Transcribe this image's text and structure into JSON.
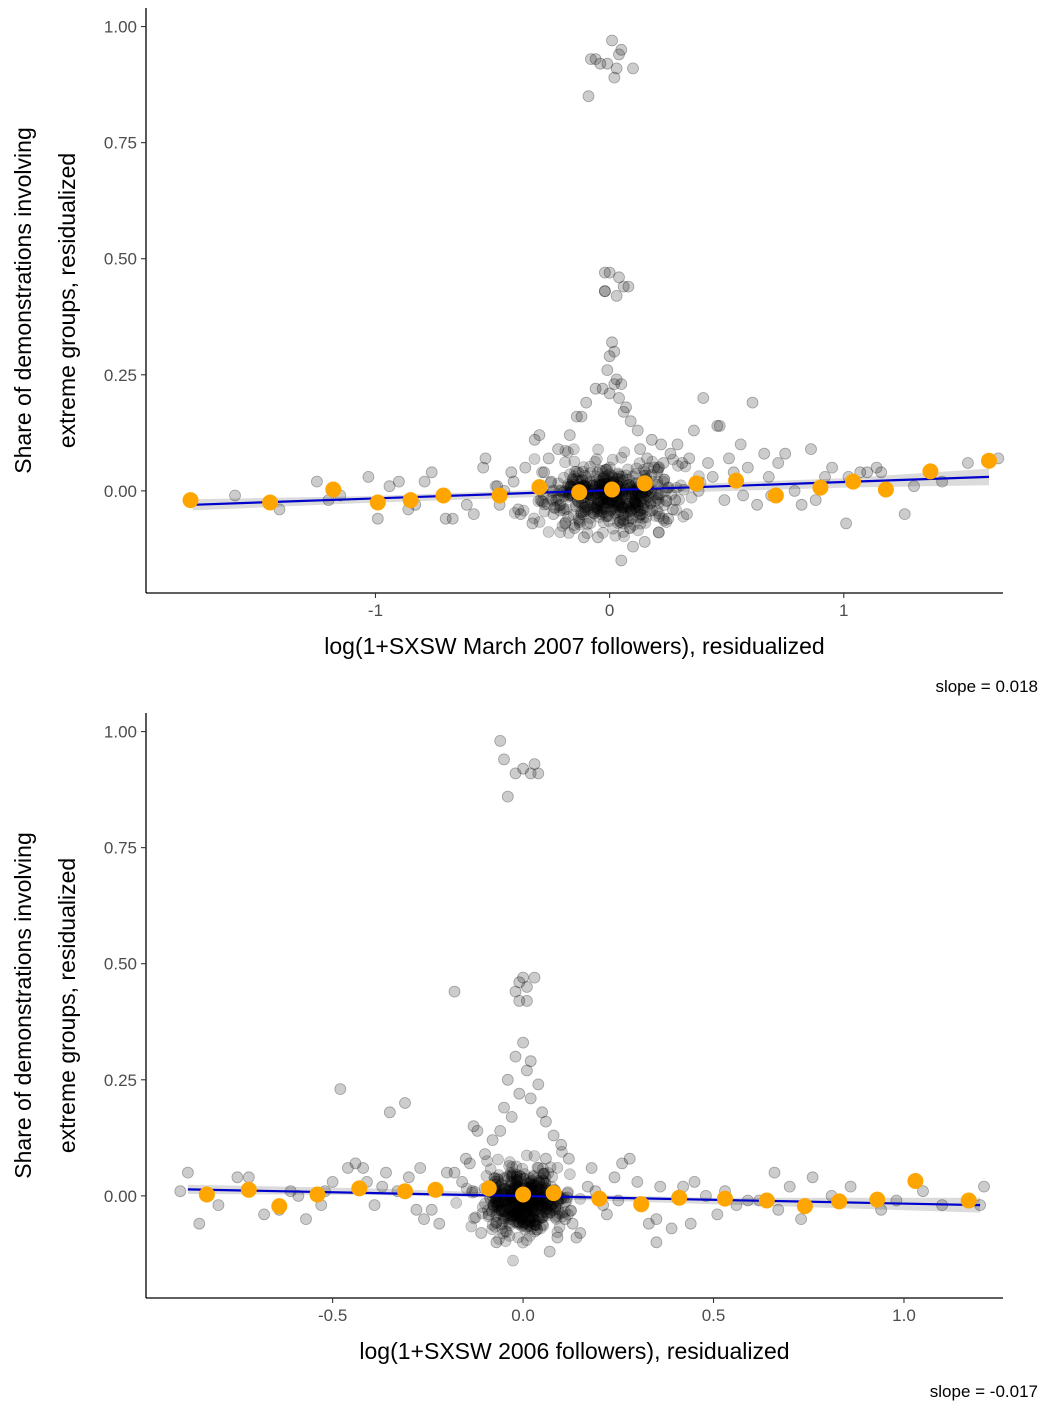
{
  "colors": {
    "points": "#000000",
    "binned": "#FFA500",
    "fit_line": "#0000CC",
    "ci_band": "#BEBEBE",
    "axis": "#000000",
    "tick_text": "#4D4D4D"
  },
  "chart_data": [
    {
      "type": "scatter",
      "title": "",
      "xlabel": "log(1+SXSW March 2007 followers), residualized",
      "ylabel_lines": [
        "Share of demonstrations involving",
        "extreme groups, residualized"
      ],
      "annotation": "slope = 0.018",
      "xlim": [
        -1.98,
        1.68
      ],
      "ylim": [
        -0.22,
        1.04
      ],
      "x_ticks": [
        -1,
        0,
        1
      ],
      "x_tick_labels": [
        "-1",
        "0",
        "1"
      ],
      "y_ticks": [
        0,
        0.25,
        0.5,
        0.75,
        1
      ],
      "y_tick_labels": [
        "0.00",
        "0.25",
        "0.50",
        "0.75",
        "1.00"
      ],
      "grid": false,
      "fit_line": {
        "x": [
          -1.78,
          1.62
        ],
        "y": [
          -0.03,
          0.03
        ]
      },
      "ci_band": {
        "x": [
          -1.78,
          -1.0,
          0.0,
          1.0,
          1.62
        ],
        "lower": [
          -0.042,
          -0.025,
          -0.008,
          0.007,
          0.012
        ],
        "upper": [
          -0.018,
          -0.011,
          0.008,
          0.027,
          0.048
        ]
      },
      "binned_points": {
        "x": [
          -1.79,
          -1.45,
          -1.18,
          -0.99,
          -0.85,
          -0.71,
          -0.47,
          -0.3,
          -0.13,
          0.01,
          0.15,
          0.37,
          0.54,
          0.71,
          0.9,
          1.04,
          1.18,
          1.37,
          1.62
        ],
        "y": [
          -0.02,
          -0.025,
          0.003,
          -0.025,
          -0.02,
          -0.01,
          -0.01,
          0.008,
          -0.003,
          0.003,
          0.016,
          0.016,
          0.022,
          -0.01,
          0.007,
          0.02,
          0.003,
          0.042,
          0.065
        ]
      },
      "scatter_points": {
        "x": [
          -0.06,
          -0.01,
          -0.09,
          0.03,
          0.05,
          0.04,
          -0.04,
          0.1,
          -0.08,
          0.01,
          0.02,
          0.0,
          0.04,
          -0.02,
          0.03,
          0.08,
          -0.02,
          0.01,
          0.02,
          0.0,
          -0.01,
          0.03,
          0.02,
          -0.03,
          0.0,
          0.05,
          -0.06,
          0.04,
          -0.1,
          0.06,
          -0.12,
          0.09,
          0.12,
          -0.17,
          0.22,
          -0.22,
          0.26,
          -0.26,
          0.31,
          0.34,
          0.4,
          0.47,
          0.56,
          0.61,
          0.66,
          0.72,
          0.82,
          0.86,
          0.95,
          1.07,
          1.14,
          1.26,
          1.42,
          1.53,
          1.66,
          -0.3,
          -0.32,
          -0.39,
          -0.42,
          -0.48,
          -0.53,
          -0.7,
          -0.76,
          -0.83,
          -0.9,
          -0.99,
          -1.15,
          -1.25,
          -1.6,
          -0.45,
          -0.38,
          0.46,
          0.59,
          0.75,
          0.92,
          1.01,
          1.1,
          -0.05,
          0.05,
          0.1,
          -0.11,
          -0.15,
          0.15,
          0.18,
          -0.19,
          0.21,
          -0.24,
          0.25,
          0.28,
          -0.28,
          0.29,
          -0.33,
          0.36,
          0.38,
          -0.36,
          0.44,
          0.51,
          0.63,
          0.69,
          0.79,
          0.88,
          1.02,
          1.16,
          1.3,
          -0.54,
          -0.61,
          -0.67,
          -0.79,
          -0.86,
          -0.94,
          -1.03,
          -1.2,
          -1.41,
          -0.07,
          0.07,
          -0.14,
          0.13,
          0.16,
          0.23,
          -0.21,
          0.19,
          0.27,
          -0.25,
          0.33,
          0.42,
          0.49,
          0.53,
          0.57,
          0.68,
          -0.41,
          -0.47,
          -0.58,
          -0.02,
          0.06
        ],
        "y": [
          0.93,
          0.92,
          0.85,
          0.91,
          0.95,
          0.94,
          0.92,
          0.91,
          0.93,
          0.97,
          0.89,
          0.47,
          0.46,
          0.43,
          0.42,
          0.44,
          0.47,
          0.32,
          0.3,
          0.29,
          0.26,
          0.24,
          0.23,
          0.22,
          0.21,
          0.23,
          0.22,
          0.2,
          0.19,
          0.17,
          0.16,
          0.15,
          0.13,
          0.12,
          0.1,
          0.09,
          0.08,
          0.07,
          0.06,
          0.07,
          0.2,
          0.14,
          0.1,
          0.19,
          0.08,
          0.06,
          -0.03,
          0.09,
          0.05,
          0.04,
          0.05,
          -0.05,
          0.02,
          0.06,
          0.07,
          0.12,
          0.11,
          -0.04,
          0.04,
          0.01,
          0.07,
          -0.06,
          0.04,
          -0.03,
          0.02,
          -0.06,
          -0.01,
          0.02,
          -0.01,
          0.0,
          -0.05,
          0.14,
          0.05,
          0.08,
          0.03,
          -0.07,
          0.04,
          -0.1,
          -0.15,
          -0.12,
          -0.1,
          -0.08,
          -0.11,
          0.11,
          -0.07,
          -0.09,
          -0.05,
          -0.06,
          -0.02,
          0.04,
          0.1,
          -0.07,
          0.13,
          0.0,
          0.05,
          0.03,
          0.07,
          -0.03,
          -0.01,
          0.0,
          -0.02,
          0.03,
          0.04,
          0.01,
          0.05,
          -0.03,
          -0.06,
          0.02,
          -0.04,
          0.01,
          0.03,
          -0.02,
          -0.04,
          -0.01,
          0.18,
          0.16,
          0.09,
          0.07,
          0.06,
          -0.03,
          0.05,
          -0.04,
          0.02,
          -0.05,
          0.06,
          -0.02,
          0.04,
          -0.01,
          0.03,
          0.02,
          -0.03,
          -0.05,
          0.43,
          0.44
        ]
      }
    },
    {
      "type": "scatter",
      "title": "",
      "xlabel": "log(1+SXSW 2006 followers), residualized",
      "ylabel_lines": [
        "Share of demonstrations involving",
        "extreme groups, residualized"
      ],
      "annotation": "slope = -0.017",
      "xlim": [
        -0.99,
        1.26
      ],
      "ylim": [
        -0.22,
        1.04
      ],
      "x_ticks": [
        -0.5,
        0.0,
        0.5,
        1.0
      ],
      "x_tick_labels": [
        "-0.5",
        "0.0",
        "0.5",
        "1.0"
      ],
      "y_ticks": [
        0,
        0.25,
        0.5,
        0.75,
        1
      ],
      "y_tick_labels": [
        "0.00",
        "0.25",
        "0.50",
        "0.75",
        "1.00"
      ],
      "grid": false,
      "fit_line": {
        "x": [
          -0.88,
          1.2
        ],
        "y": [
          0.014,
          -0.02
        ]
      },
      "ci_band": {
        "x": [
          -0.88,
          -0.4,
          0.0,
          0.5,
          1.2
        ],
        "lower": [
          0.004,
          0.002,
          -0.005,
          -0.018,
          -0.036
        ],
        "upper": [
          0.024,
          0.016,
          0.005,
          -0.004,
          -0.004
        ]
      },
      "binned_points": {
        "x": [
          -0.83,
          -0.72,
          -0.64,
          -0.54,
          -0.43,
          -0.31,
          -0.23,
          -0.09,
          0.0,
          0.08,
          0.2,
          0.31,
          0.41,
          0.53,
          0.64,
          0.74,
          0.83,
          0.93,
          1.03,
          1.17
        ],
        "y": [
          0.003,
          0.013,
          -0.022,
          0.003,
          0.016,
          0.01,
          0.013,
          0.016,
          0.003,
          0.006,
          -0.006,
          -0.018,
          -0.004,
          -0.006,
          -0.01,
          -0.022,
          -0.012,
          -0.008,
          0.032,
          -0.01
        ]
      },
      "scatter_points": {
        "x": [
          -0.06,
          -0.05,
          -0.02,
          -0.04,
          0.0,
          0.02,
          0.04,
          0.03,
          0.0,
          -0.01,
          -0.02,
          0.01,
          -0.01,
          0.01,
          0.03,
          0.0,
          -0.02,
          0.02,
          0.01,
          -0.04,
          0.04,
          -0.01,
          0.02,
          -0.05,
          0.05,
          -0.03,
          0.06,
          -0.06,
          0.08,
          -0.08,
          0.1,
          -0.1,
          0.12,
          -0.14,
          0.18,
          -0.18,
          0.24,
          -0.24,
          0.3,
          0.35,
          0.42,
          0.48,
          0.56,
          0.62,
          0.67,
          0.76,
          0.86,
          0.98,
          1.1,
          1.21,
          1.2,
          -0.27,
          -0.3,
          -0.36,
          -0.41,
          -0.46,
          -0.5,
          -0.57,
          -0.64,
          -0.72,
          -0.8,
          -0.9,
          -0.88,
          -0.18,
          -0.48,
          -0.35,
          -0.31,
          -0.13,
          0.11,
          0.14,
          0.17,
          0.22,
          0.26,
          0.28,
          0.33,
          0.39,
          0.45,
          0.51,
          0.59,
          0.7,
          0.81,
          0.94,
          1.05,
          -0.15,
          -0.22,
          -0.28,
          -0.33,
          -0.39,
          -0.44,
          -0.53,
          -0.61,
          -0.68,
          -0.75,
          -0.85,
          -0.07,
          0.07,
          -0.11,
          0.13,
          0.09,
          -0.09,
          0.15,
          -0.16,
          0.19,
          -0.2,
          0.21,
          0.25,
          0.36,
          0.44,
          0.53,
          0.66,
          0.73,
          -0.26,
          -0.37,
          -0.42,
          -0.52,
          -0.59,
          -0.12,
          0.06,
          0.35
        ],
        "y": [
          0.98,
          0.94,
          0.91,
          0.86,
          0.92,
          0.91,
          0.91,
          0.93,
          0.47,
          0.46,
          0.44,
          0.42,
          0.42,
          0.45,
          0.47,
          0.33,
          0.3,
          0.29,
          0.27,
          0.25,
          0.24,
          0.22,
          0.21,
          0.19,
          0.18,
          0.17,
          0.16,
          0.14,
          0.13,
          0.12,
          0.11,
          0.09,
          0.08,
          0.07,
          0.06,
          0.05,
          0.04,
          -0.03,
          0.03,
          -0.05,
          0.02,
          0.0,
          -0.02,
          -0.01,
          -0.03,
          0.04,
          0.02,
          -0.01,
          -0.02,
          0.02,
          -0.02,
          0.06,
          0.04,
          0.05,
          0.03,
          0.06,
          0.03,
          -0.05,
          -0.03,
          0.04,
          -0.02,
          0.01,
          0.05,
          0.44,
          0.23,
          0.18,
          0.2,
          0.15,
          -0.05,
          -0.09,
          0.02,
          -0.04,
          0.07,
          0.08,
          -0.06,
          -0.07,
          0.03,
          -0.04,
          -0.01,
          0.02,
          0.0,
          -0.03,
          0.01,
          0.08,
          -0.06,
          -0.03,
          0.01,
          -0.02,
          0.07,
          -0.02,
          0.01,
          -0.04,
          0.04,
          -0.06,
          -0.1,
          -0.12,
          -0.08,
          -0.06,
          -0.09,
          -0.04,
          -0.08,
          0.03,
          0.01,
          0.05,
          -0.02,
          -0.01,
          0.02,
          -0.06,
          0.01,
          0.05,
          -0.05,
          -0.05,
          0.02,
          0.06,
          0.01,
          0.0,
          0.14,
          0.08,
          -0.1
        ]
      }
    }
  ]
}
